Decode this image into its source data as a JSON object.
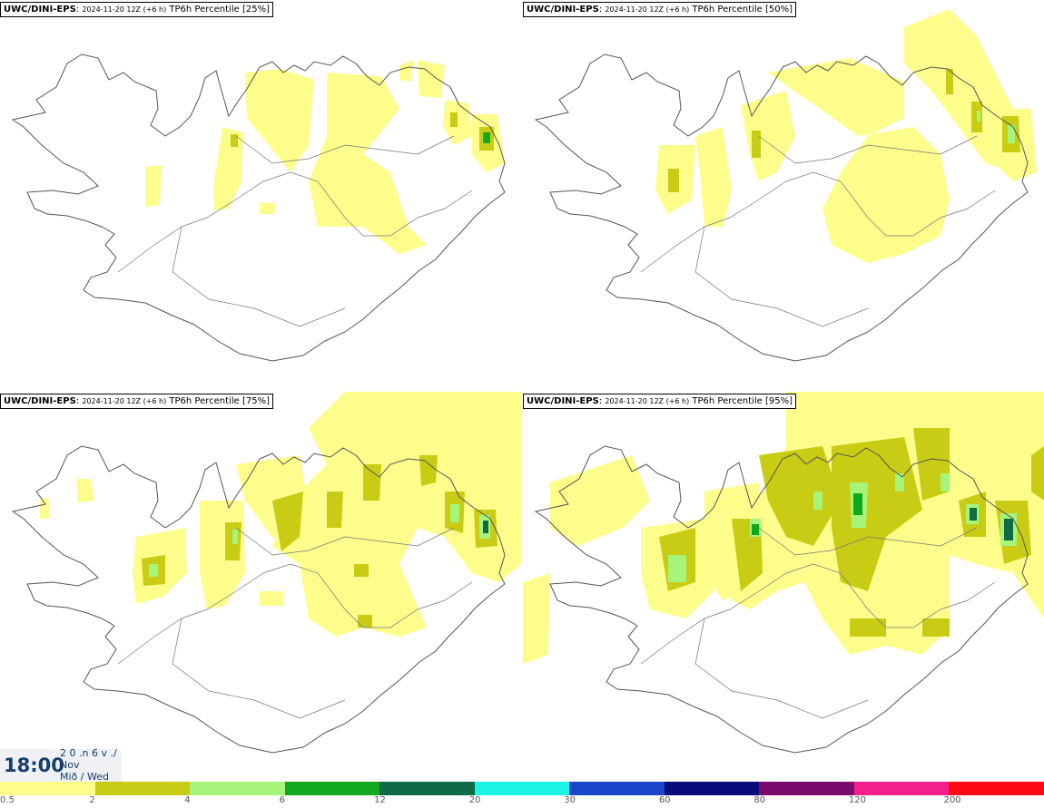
{
  "panels": [
    {
      "source": "UWC/DINI-EPS",
      "run": "2024-11-20 12Z (+6 h)",
      "product": "TP6h Percentile [25%]"
    },
    {
      "source": "UWC/DINI-EPS",
      "run": "2024-11-20 12Z (+6 h)",
      "product": "TP6h Percentile [50%]"
    },
    {
      "source": "UWC/DINI-EPS",
      "run": "2024-11-20 12Z (+6 h)",
      "product": "TP6h Percentile [75%]"
    },
    {
      "source": "UWC/DINI-EPS",
      "run": "2024-11-20 12Z (+6 h)",
      "product": "TP6h Percentile [95%]"
    }
  ],
  "valid_time": {
    "time": "18:00",
    "line1": "2 0 .n 6 v ./",
    "line2": "Nov",
    "line3": "Mið / Wed"
  },
  "legend": {
    "labels": [
      "0.5",
      "2",
      "4",
      "6",
      "12",
      "20",
      "30",
      "60",
      "80",
      "120",
      "200"
    ],
    "colors": [
      "#fdfd8c",
      "#c8cc14",
      "#a6f57a",
      "#11a81f",
      "#0f6a45",
      "#1cf5e6",
      "#1a47c9",
      "#0a0a7a",
      "#7a0a6b",
      "#f21f8c",
      "#fc0a14"
    ]
  }
}
